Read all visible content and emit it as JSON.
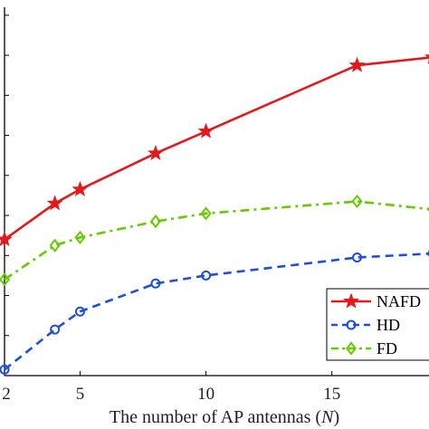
{
  "chart_data": {
    "type": "line",
    "title": "",
    "xlabel": "The number of AP antennas (N)",
    "xlabel_text": "The number of AP antennas (",
    "xlabel_var": "N",
    "xlabel_close": ")",
    "ylabel": "",
    "x_ticks": [
      "2",
      "5",
      "10",
      "15"
    ],
    "xlim": [
      2,
      19
    ],
    "ylim": [
      0,
      9.2
    ],
    "grid": false,
    "legend_position": "bottom-right",
    "series": [
      {
        "name": "NAFD",
        "color": "#e31a1c",
        "line_style": "solid",
        "marker": "star",
        "x": [
          2,
          4,
          5,
          8,
          10,
          16,
          19
        ],
        "y": [
          3.4,
          4.3,
          4.65,
          5.55,
          6.1,
          7.75,
          7.95
        ]
      },
      {
        "name": "HD",
        "color": "#1f4fd6",
        "line_style": "dashed",
        "marker": "circle",
        "x": [
          2,
          4,
          5,
          8,
          10,
          16,
          19
        ],
        "y": [
          0.15,
          1.15,
          1.6,
          2.3,
          2.5,
          2.95,
          3.05
        ]
      },
      {
        "name": "FD",
        "color": "#66cc00",
        "line_style": "dashdot",
        "marker": "diamond",
        "x": [
          2,
          4,
          5,
          8,
          10,
          16,
          19
        ],
        "y": [
          2.4,
          3.25,
          3.45,
          3.85,
          4.05,
          4.35,
          4.15
        ]
      }
    ]
  }
}
